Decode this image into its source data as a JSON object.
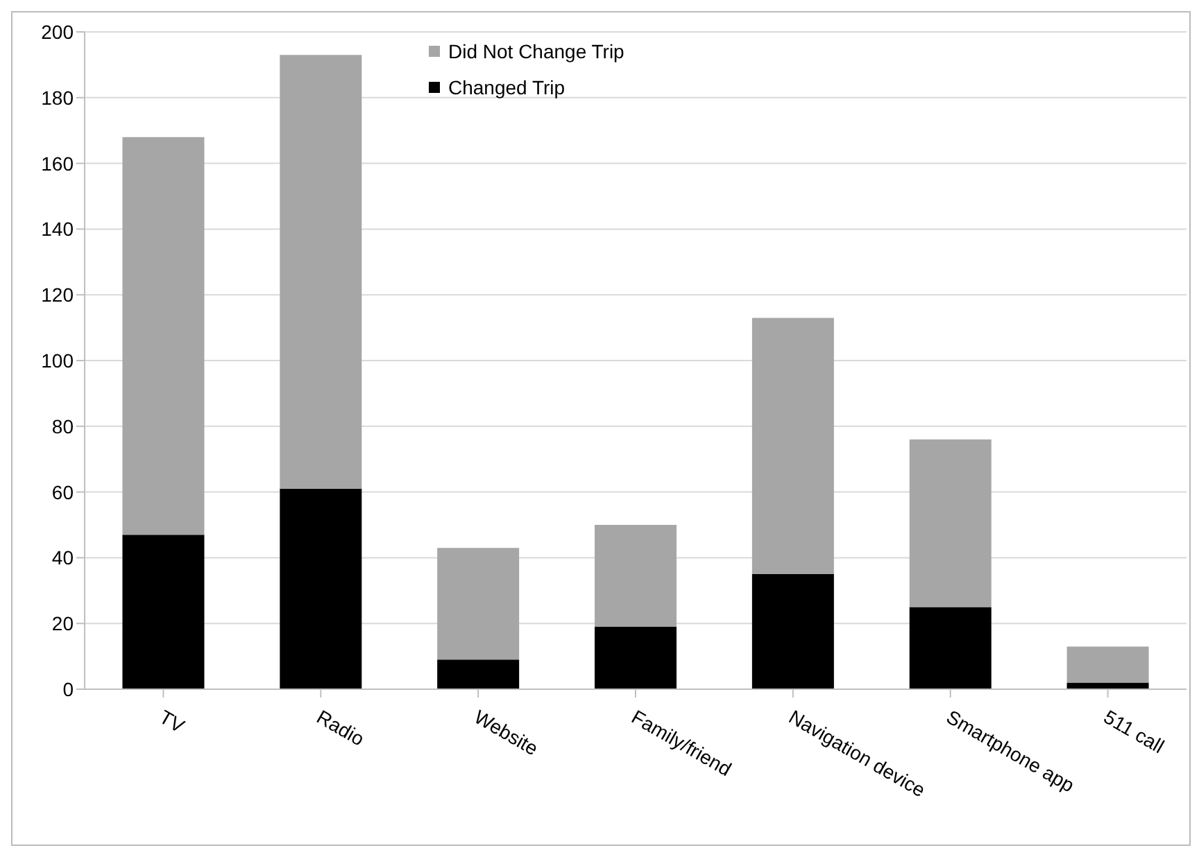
{
  "chart_data": {
    "type": "bar",
    "stacked": true,
    "categories": [
      "TV",
      "Radio",
      "Website",
      "Family/friend",
      "Navigation device",
      "Smartphone app",
      "511 call"
    ],
    "series": [
      {
        "name": "Changed Trip",
        "color": "#000000",
        "values": [
          47,
          61,
          9,
          19,
          35,
          25,
          2
        ]
      },
      {
        "name": "Did Not Change Trip",
        "color": "#a6a6a6",
        "values": [
          121,
          132,
          34,
          31,
          78,
          51,
          11
        ]
      }
    ],
    "ylim": [
      0,
      200
    ],
    "yticks": [
      0,
      20,
      40,
      60,
      80,
      100,
      120,
      140,
      160,
      180,
      200
    ],
    "grid": "y",
    "legend": "top"
  }
}
